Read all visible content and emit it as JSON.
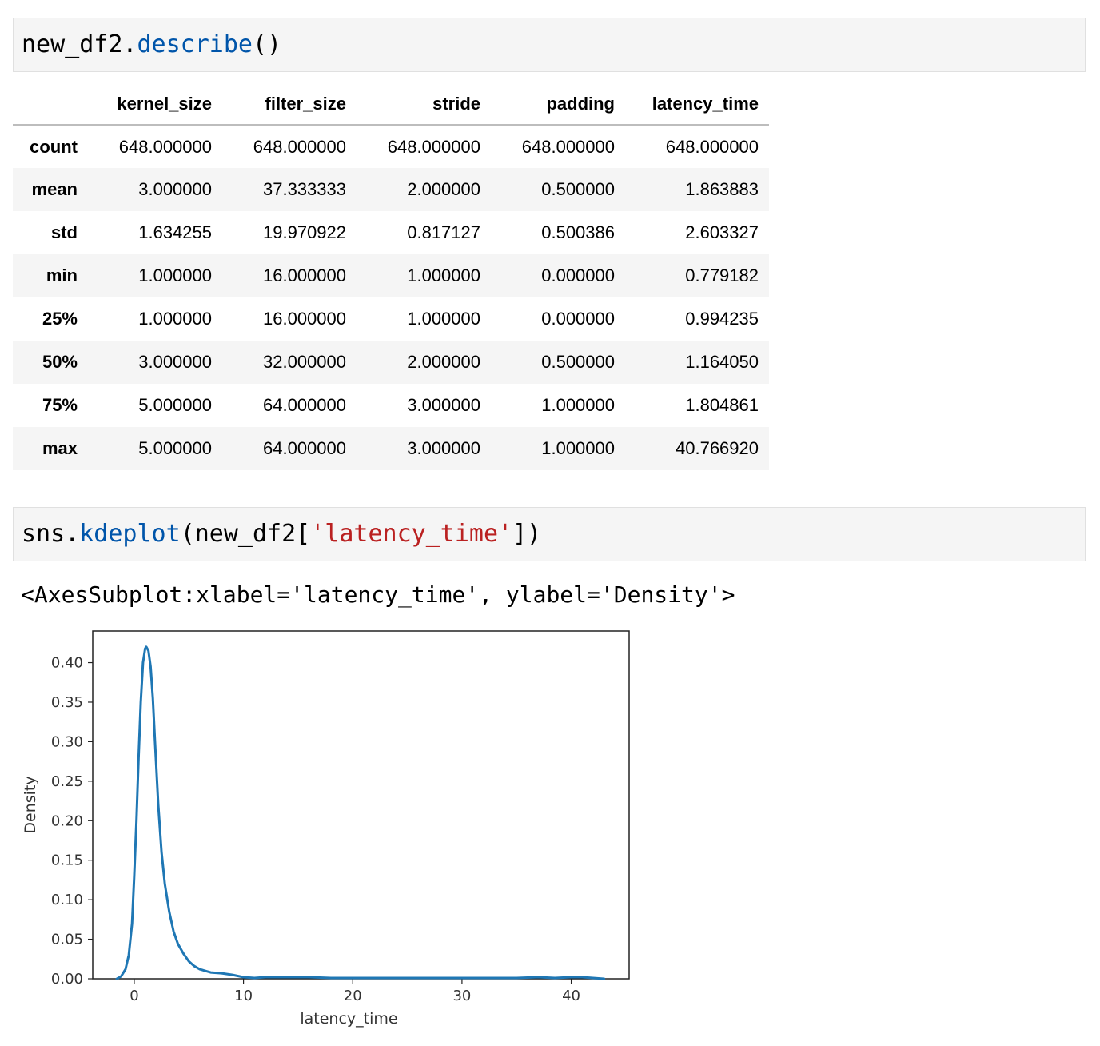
{
  "cells": [
    {
      "code_parts": [
        {
          "text": "new_df2.",
          "style": "plain"
        },
        {
          "text": "describe",
          "style": "fn"
        },
        {
          "text": "()",
          "style": "plain"
        }
      ]
    },
    {
      "code_parts": [
        {
          "text": "sns.",
          "style": "plain"
        },
        {
          "text": "kdeplot",
          "style": "fn"
        },
        {
          "text": "(new_df2[",
          "style": "plain"
        },
        {
          "text": "'latency_time'",
          "style": "str"
        },
        {
          "text": "])",
          "style": "plain"
        }
      ]
    }
  ],
  "describe_table": {
    "columns": [
      "kernel_size",
      "filter_size",
      "stride",
      "padding",
      "latency_time"
    ],
    "rows": [
      {
        "index": "count",
        "values": [
          "648.000000",
          "648.000000",
          "648.000000",
          "648.000000",
          "648.000000"
        ]
      },
      {
        "index": "mean",
        "values": [
          "3.000000",
          "37.333333",
          "2.000000",
          "0.500000",
          "1.863883"
        ]
      },
      {
        "index": "std",
        "values": [
          "1.634255",
          "19.970922",
          "0.817127",
          "0.500386",
          "2.603327"
        ]
      },
      {
        "index": "min",
        "values": [
          "1.000000",
          "16.000000",
          "1.000000",
          "0.000000",
          "0.779182"
        ]
      },
      {
        "index": "25%",
        "values": [
          "1.000000",
          "16.000000",
          "1.000000",
          "0.000000",
          "0.994235"
        ]
      },
      {
        "index": "50%",
        "values": [
          "3.000000",
          "32.000000",
          "2.000000",
          "0.500000",
          "1.164050"
        ]
      },
      {
        "index": "75%",
        "values": [
          "5.000000",
          "64.000000",
          "3.000000",
          "1.000000",
          "1.804861"
        ]
      },
      {
        "index": "max",
        "values": [
          "5.000000",
          "64.000000",
          "3.000000",
          "1.000000",
          "40.766920"
        ]
      }
    ]
  },
  "output_repr": "<AxesSubplot:xlabel='latency_time', ylabel='Density'>",
  "chart_data": {
    "type": "line",
    "title": "",
    "xlabel": "latency_time",
    "ylabel": "Density",
    "xlim": [
      -3.8,
      45.3
    ],
    "ylim": [
      0.0,
      0.44
    ],
    "xticks": [
      0,
      10,
      20,
      30,
      40
    ],
    "yticks": [
      0.0,
      0.05,
      0.1,
      0.15,
      0.2,
      0.25,
      0.3,
      0.35,
      0.4
    ],
    "ytick_labels": [
      "0.00",
      "0.05",
      "0.10",
      "0.15",
      "0.20",
      "0.25",
      "0.30",
      "0.35",
      "0.40"
    ],
    "grid": false,
    "legend": "none",
    "series": [
      {
        "color": "#1f77b4",
        "x": [
          -1.6,
          -1.2,
          -0.8,
          -0.5,
          -0.2,
          0.0,
          0.2,
          0.4,
          0.6,
          0.8,
          1.0,
          1.1,
          1.3,
          1.5,
          1.7,
          1.9,
          2.2,
          2.5,
          2.8,
          3.2,
          3.6,
          4.0,
          4.5,
          5.0,
          5.5,
          6.0,
          7.0,
          8.0,
          9.0,
          10.0,
          11.0,
          12.0,
          13.0,
          14.0,
          16.0,
          18.0,
          20.0,
          22.0,
          25.0,
          28.0,
          30.0,
          32.0,
          35.0,
          37.0,
          38.5,
          40.0,
          41.0,
          42.0,
          43.0
        ],
        "y": [
          0.0,
          0.003,
          0.012,
          0.03,
          0.07,
          0.13,
          0.2,
          0.28,
          0.35,
          0.4,
          0.418,
          0.42,
          0.415,
          0.395,
          0.355,
          0.3,
          0.22,
          0.16,
          0.12,
          0.085,
          0.06,
          0.044,
          0.032,
          0.022,
          0.016,
          0.012,
          0.008,
          0.007,
          0.005,
          0.002,
          0.001,
          0.002,
          0.002,
          0.002,
          0.002,
          0.001,
          0.001,
          0.001,
          0.001,
          0.001,
          0.001,
          0.001,
          0.001,
          0.002,
          0.001,
          0.002,
          0.002,
          0.001,
          0.0
        ]
      }
    ]
  }
}
